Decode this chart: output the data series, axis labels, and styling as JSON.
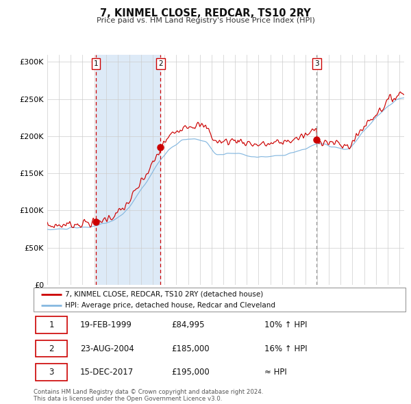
{
  "title": "7, KINMEL CLOSE, REDCAR, TS10 2RY",
  "subtitle": "Price paid vs. HM Land Registry's House Price Index (HPI)",
  "sale_line_label": "7, KINMEL CLOSE, REDCAR, TS10 2RY (detached house)",
  "hpi_line_label": "HPI: Average price, detached house, Redcar and Cleveland",
  "sale_dates_decimal": [
    1999.13,
    2004.65,
    2017.96
  ],
  "sale_prices": [
    84995,
    185000,
    195000
  ],
  "ylim": [
    0,
    310000
  ],
  "yticks": [
    0,
    50000,
    100000,
    150000,
    200000,
    250000,
    300000
  ],
  "xlim_start": 1995.0,
  "xlim_end": 2025.4,
  "shaded_region_color": "#ddeaf7",
  "sale_color": "#cc0000",
  "hpi_color": "#85b8e0",
  "grid_color": "#cccccc",
  "footer_text": "Contains HM Land Registry data © Crown copyright and database right 2024.\nThis data is licensed under the Open Government Licence v3.0.",
  "table_rows": [
    [
      "1",
      "19-FEB-1999",
      "£84,995",
      "10% ↑ HPI"
    ],
    [
      "2",
      "23-AUG-2004",
      "£185,000",
      "16% ↑ HPI"
    ],
    [
      "3",
      "15-DEC-2017",
      "£195,000",
      "≈ HPI"
    ]
  ],
  "table_row_colors": [
    "#cc0000",
    "#cc0000",
    "#cc0000"
  ]
}
